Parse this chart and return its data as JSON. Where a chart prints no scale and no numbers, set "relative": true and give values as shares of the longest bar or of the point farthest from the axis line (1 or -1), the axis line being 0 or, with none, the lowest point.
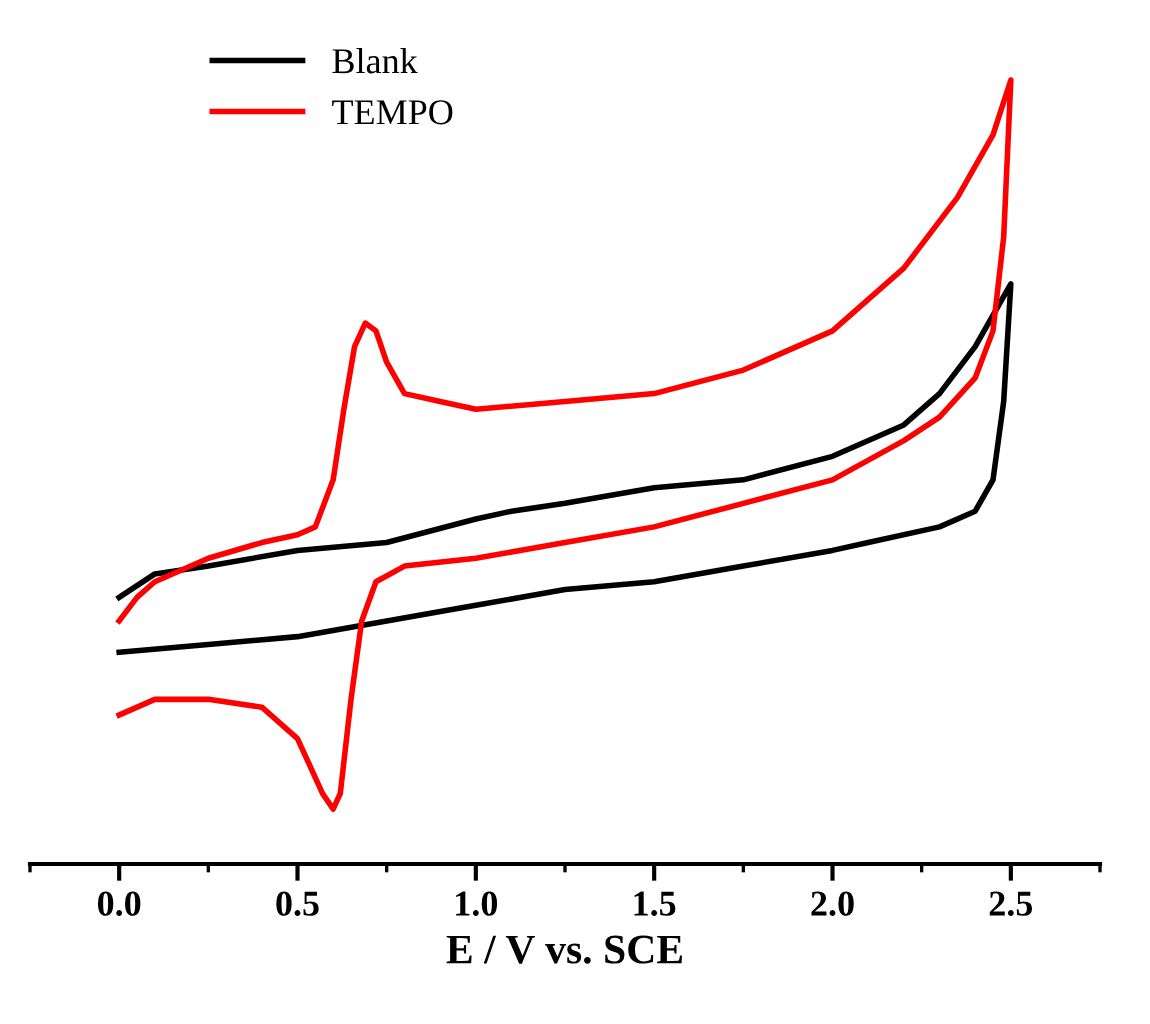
{
  "chart_data": {
    "type": "line",
    "relative": true,
    "xlabel": "E / V vs. SCE",
    "xlim": [
      -0.25,
      2.75
    ],
    "xticks": [
      {
        "value": 0,
        "label": "0.0"
      },
      {
        "value": 0.5,
        "label": "0.5"
      },
      {
        "value": 1,
        "label": "1.0"
      },
      {
        "value": 1.5,
        "label": "1.5"
      },
      {
        "value": 2,
        "label": "2.0"
      },
      {
        "value": 2.5,
        "label": "2.5"
      }
    ],
    "legend": "top left",
    "grid": false,
    "marker": "none",
    "line_style": "solid",
    "series": [
      {
        "name": "Blank",
        "color": "#000000",
        "x": [
          0,
          0.1,
          0.25,
          0.5,
          0.75,
          1.0,
          1.1,
          1.25,
          1.5,
          1.75,
          2.0,
          2.2,
          2.3,
          2.4,
          2.5,
          2.48,
          2.45,
          2.4,
          2.3,
          2.1,
          2.0,
          1.75,
          1.5,
          1.25,
          1.0,
          0.75,
          0.5,
          0.25,
          0.0
        ],
        "values": [
          0.34,
          0.37,
          0.38,
          0.4,
          0.41,
          0.44,
          0.45,
          0.46,
          0.48,
          0.49,
          0.52,
          0.56,
          0.6,
          0.66,
          0.74,
          0.59,
          0.49,
          0.45,
          0.43,
          0.41,
          0.4,
          0.38,
          0.36,
          0.35,
          0.33,
          0.31,
          0.29,
          0.28,
          0.27
        ]
      },
      {
        "name": "TEMPO",
        "color": "#ff0000",
        "x": [
          0,
          0.05,
          0.1,
          0.25,
          0.4,
          0.5,
          0.55,
          0.6,
          0.63,
          0.66,
          0.69,
          0.72,
          0.75,
          0.8,
          0.9,
          1.0,
          1.25,
          1.5,
          1.75,
          2.0,
          2.2,
          2.35,
          2.45,
          2.5,
          2.48,
          2.45,
          2.4,
          2.3,
          2.2,
          2.0,
          1.75,
          1.5,
          1.25,
          1.0,
          0.8,
          0.72,
          0.68,
          0.65,
          0.62,
          0.6,
          0.57,
          0.5,
          0.4,
          0.25,
          0.1,
          0.0
        ],
        "values": [
          0.31,
          0.34,
          0.36,
          0.39,
          0.41,
          0.42,
          0.43,
          0.49,
          0.58,
          0.66,
          0.69,
          0.68,
          0.64,
          0.6,
          0.59,
          0.58,
          0.59,
          0.6,
          0.63,
          0.68,
          0.76,
          0.85,
          0.93,
          1,
          0.8,
          0.68,
          0.62,
          0.57,
          0.54,
          0.49,
          0.46,
          0.43,
          0.41,
          0.39,
          0.38,
          0.36,
          0.31,
          0.21,
          0.09,
          0.07,
          0.09,
          0.16,
          0.2,
          0.21,
          0.21,
          0.19
        ]
      }
    ]
  }
}
